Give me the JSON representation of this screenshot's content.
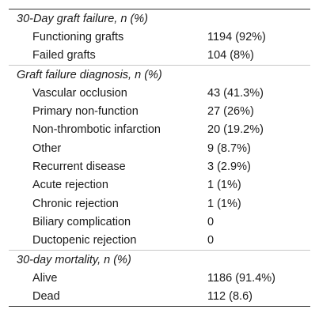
{
  "sections": [
    {
      "heading": "30-Day graft failure, n (%)",
      "rows": [
        {
          "label": "Functioning grafts",
          "value": "1194 (92%)"
        },
        {
          "label": "Failed grafts",
          "value": "104 (8%)"
        }
      ]
    },
    {
      "heading": "Graft failure diagnosis, n (%)",
      "rows": [
        {
          "label": "Vascular occlusion",
          "value": "43 (41.3%)"
        },
        {
          "label": "Primary non-function",
          "value": "27 (26%)"
        },
        {
          "label": "Non-thrombotic infarction",
          "value": "20 (19.2%)"
        },
        {
          "label": "Other",
          "value": "9 (8.7%)"
        },
        {
          "label": "Recurrent disease",
          "value": "3 (2.9%)"
        },
        {
          "label": "Acute rejection",
          "value": "1 (1%)"
        },
        {
          "label": "Chronic rejection",
          "value": "1 (1%)"
        },
        {
          "label": "Biliary complication",
          "value": "0"
        },
        {
          "label": "Ductopenic rejection",
          "value": "0"
        }
      ]
    },
    {
      "heading": "30-day mortality, n (%)",
      "rows": [
        {
          "label": "Alive",
          "value": "1186 (91.4%)"
        },
        {
          "label": "Dead",
          "value": "112 (8.6)"
        }
      ]
    }
  ]
}
